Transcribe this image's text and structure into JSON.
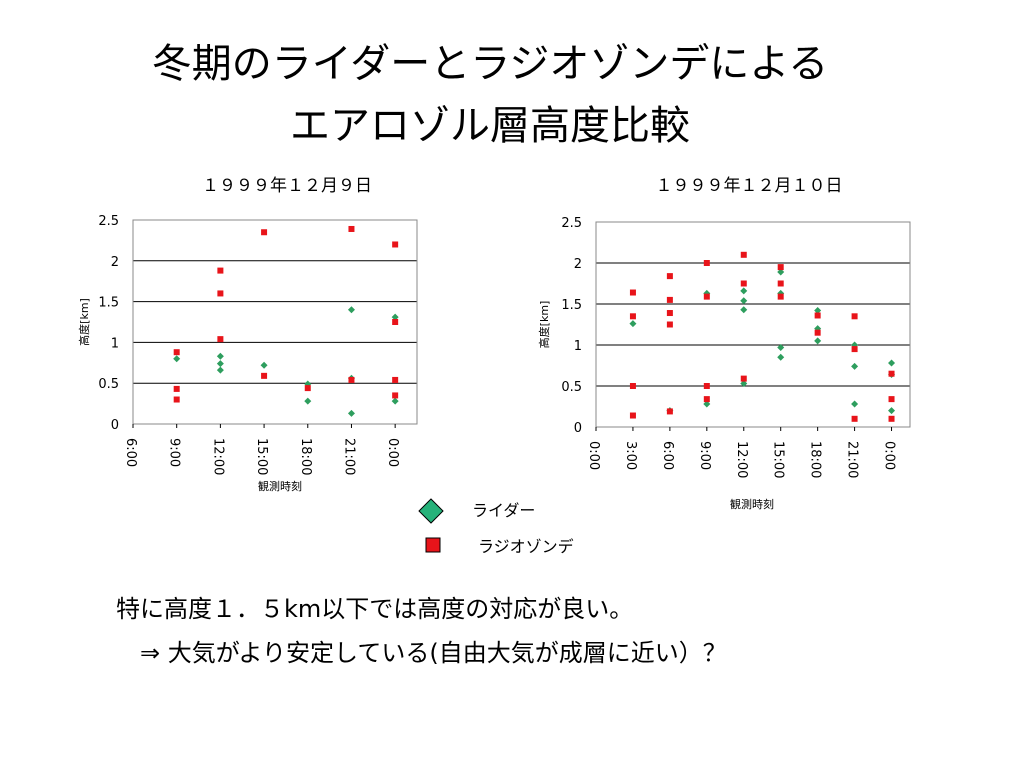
{
  "slide": {
    "title_line1": "冬期のライダーとラジオゾンデによる",
    "title_line2": "エアロゾル層高度比較",
    "note_line1": "特に高度１．５km以下では高度の対応が良い。",
    "note_line2": "⇒  大気がより安定している(自由大気が成層に近い）？"
  },
  "legend": {
    "lidar": "ライダー",
    "radiosonde": "ラジオゾンデ"
  },
  "colors": {
    "lidar": "#2e9e5e",
    "radiosonde": "#e8141a",
    "legend_lidar": "#26b27a",
    "grid": "#000000"
  },
  "chart_data": [
    {
      "type": "scatter",
      "title": "１９９９年１２月９日",
      "xlabel": "観測時刻",
      "ylabel": "高度[km]",
      "ylim": [
        0,
        2.5
      ],
      "xlim": [
        6,
        25.5
      ],
      "xticks": [
        6,
        9,
        12,
        15,
        18,
        21,
        24
      ],
      "xtick_labels": [
        "6:00",
        "9:00",
        "12:00",
        "15:00",
        "18:00",
        "21:00",
        "0:00"
      ],
      "yticks": [
        0,
        0.5,
        1,
        1.5,
        2,
        2.5
      ],
      "ytick_labels": [
        "0",
        "0.5",
        "1",
        "1.5",
        "2",
        "2.5"
      ],
      "grid": "horizontal",
      "series": [
        {
          "name": "ライダー",
          "marker": "diamond",
          "points": [
            [
              9,
              0.8
            ],
            [
              12,
              0.83
            ],
            [
              12,
              0.74
            ],
            [
              12,
              0.66
            ],
            [
              15,
              0.72
            ],
            [
              18,
              0.49
            ],
            [
              18,
              0.28
            ],
            [
              21,
              1.4
            ],
            [
              21,
              0.56
            ],
            [
              21,
              0.13
            ],
            [
              24,
              1.31
            ],
            [
              24,
              0.28
            ]
          ]
        },
        {
          "name": "ラジオゾンデ",
          "marker": "square",
          "points": [
            [
              9,
              0.88
            ],
            [
              9,
              0.43
            ],
            [
              9,
              0.3
            ],
            [
              12,
              1.88
            ],
            [
              12,
              1.6
            ],
            [
              12,
              1.04
            ],
            [
              15,
              2.35
            ],
            [
              15,
              0.59
            ],
            [
              18,
              0.44
            ],
            [
              21,
              2.39
            ],
            [
              21,
              0.54
            ],
            [
              24,
              2.2
            ],
            [
              24,
              1.25
            ],
            [
              24,
              0.54
            ],
            [
              24,
              0.35
            ]
          ]
        }
      ]
    },
    {
      "type": "scatter",
      "title": "１９９９年１２月１０日",
      "xlabel": "観測時刻",
      "ylabel": "高度[km]",
      "ylim": [
        0,
        2.5
      ],
      "xlim": [
        0,
        25.5
      ],
      "xticks": [
        0,
        3,
        6,
        9,
        12,
        15,
        18,
        21,
        24
      ],
      "xtick_labels": [
        "0:00",
        "3:00",
        "6:00",
        "9:00",
        "12:00",
        "15:00",
        "18:00",
        "21:00",
        "0:00"
      ],
      "yticks": [
        0,
        0.5,
        1,
        1.5,
        2,
        2.5
      ],
      "ytick_labels": [
        "0",
        "0.5",
        "1",
        "1.5",
        "2",
        "2.5"
      ],
      "grid": "horizontal",
      "series": [
        {
          "name": "ライダー",
          "marker": "diamond",
          "points": [
            [
              3,
              1.26
            ],
            [
              6,
              0.2
            ],
            [
              9,
              1.63
            ],
            [
              9,
              0.28
            ],
            [
              12,
              1.66
            ],
            [
              12,
              1.54
            ],
            [
              12,
              1.43
            ],
            [
              12,
              0.53
            ],
            [
              15,
              1.89
            ],
            [
              15,
              1.63
            ],
            [
              15,
              0.97
            ],
            [
              15,
              0.85
            ],
            [
              18,
              1.42
            ],
            [
              18,
              1.2
            ],
            [
              18,
              1.05
            ],
            [
              21,
              1.0
            ],
            [
              21,
              0.74
            ],
            [
              21,
              0.28
            ],
            [
              24,
              0.78
            ],
            [
              24,
              0.64
            ],
            [
              24,
              0.2
            ]
          ]
        },
        {
          "name": "ラジオゾンデ",
          "marker": "square",
          "points": [
            [
              3,
              1.64
            ],
            [
              3,
              1.35
            ],
            [
              3,
              0.5
            ],
            [
              3,
              0.14
            ],
            [
              6,
              1.84
            ],
            [
              6,
              1.55
            ],
            [
              6,
              1.39
            ],
            [
              6,
              1.25
            ],
            [
              6,
              0.19
            ],
            [
              9,
              2.0
            ],
            [
              9,
              1.59
            ],
            [
              9,
              0.5
            ],
            [
              9,
              0.34
            ],
            [
              12,
              2.1
            ],
            [
              12,
              1.75
            ],
            [
              12,
              0.59
            ],
            [
              15,
              1.95
            ],
            [
              15,
              1.75
            ],
            [
              15,
              1.59
            ],
            [
              18,
              1.36
            ],
            [
              18,
              1.15
            ],
            [
              21,
              1.35
            ],
            [
              21,
              0.95
            ],
            [
              21,
              0.1
            ],
            [
              24,
              0.65
            ],
            [
              24,
              0.34
            ],
            [
              24,
              0.1
            ]
          ]
        }
      ]
    }
  ]
}
